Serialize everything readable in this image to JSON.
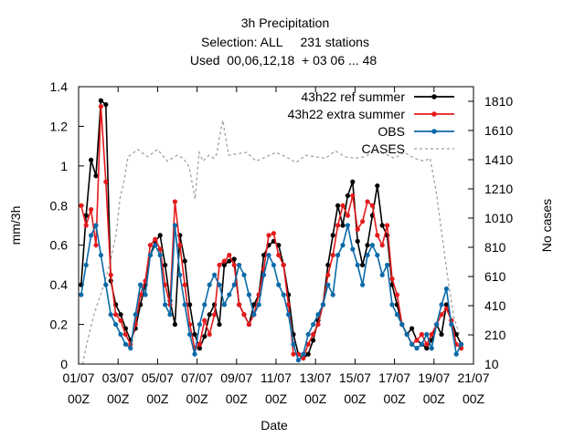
{
  "chart_data": {
    "type": "line",
    "title": [
      "3h Precipitation",
      "Selection: ALL     231 stations",
      "Used  00,06,12,18  + 03 06 ... 48"
    ],
    "xlabel": "Date",
    "ylabel": "mm/3h",
    "y2label": "No cases",
    "x_unit": "days since 01/07 00Z",
    "xlim": [
      0,
      20
    ],
    "ylim": [
      0,
      1.4
    ],
    "y2lim": [
      10,
      1910
    ],
    "x_ticks": [
      {
        "v": 0,
        "l1": "01/07",
        "l2": "00Z"
      },
      {
        "v": 2,
        "l1": "03/07",
        "l2": "00Z"
      },
      {
        "v": 4,
        "l1": "05/07",
        "l2": "00Z"
      },
      {
        "v": 6,
        "l1": "07/07",
        "l2": "00Z"
      },
      {
        "v": 8,
        "l1": "09/07",
        "l2": "00Z"
      },
      {
        "v": 10,
        "l1": "11/07",
        "l2": "00Z"
      },
      {
        "v": 12,
        "l1": "13/07",
        "l2": "00Z"
      },
      {
        "v": 14,
        "l1": "15/07",
        "l2": "00Z"
      },
      {
        "v": 16,
        "l1": "17/07",
        "l2": "00Z"
      },
      {
        "v": 18,
        "l1": "19/07",
        "l2": "00Z"
      },
      {
        "v": 20,
        "l1": "21/07",
        "l2": "00Z"
      }
    ],
    "y_ticks": [
      "0",
      "0.2",
      "0.4",
      "0.6",
      "0.8",
      "1",
      "1.2",
      "1.4"
    ],
    "y2_ticks": [
      "10",
      "210",
      "410",
      "610",
      "810",
      "1010",
      "1210",
      "1410",
      "1610",
      "1810"
    ],
    "legend_position": "top-right",
    "series": [
      {
        "name": "43h22 ref summer",
        "color": "#000000",
        "x": [
          0.13,
          0.38,
          0.63,
          0.88,
          1.13,
          1.38,
          1.63,
          1.88,
          2.13,
          2.38,
          2.63,
          2.88,
          3.13,
          3.38,
          3.63,
          3.88,
          4.13,
          4.38,
          4.63,
          4.88,
          5.13,
          5.38,
          5.63,
          5.88,
          6.13,
          6.38,
          6.63,
          6.88,
          7.13,
          7.38,
          7.63,
          7.88,
          8.13,
          8.38,
          8.63,
          8.88,
          9.13,
          9.38,
          9.63,
          9.88,
          10.13,
          10.38,
          10.63,
          10.88,
          11.13,
          11.38,
          11.63,
          11.88,
          12.13,
          12.38,
          12.63,
          12.88,
          13.13,
          13.38,
          13.63,
          13.88,
          14.13,
          14.38,
          14.63,
          14.88,
          15.13,
          15.38,
          15.63,
          15.88,
          16.13,
          16.38,
          16.63,
          16.88,
          17.13,
          17.38,
          17.63,
          17.88,
          18.13,
          18.38,
          18.63,
          18.88,
          19.13,
          19.38
        ],
        "values": [
          0.4,
          0.75,
          1.03,
          0.95,
          1.33,
          1.31,
          0.42,
          0.3,
          0.25,
          0.18,
          0.12,
          0.18,
          0.3,
          0.4,
          0.55,
          0.62,
          0.65,
          0.5,
          0.32,
          0.2,
          0.65,
          0.52,
          0.3,
          0.15,
          0.08,
          0.14,
          0.25,
          0.3,
          0.2,
          0.5,
          0.52,
          0.53,
          0.3,
          0.25,
          0.2,
          0.3,
          0.35,
          0.55,
          0.6,
          0.62,
          0.6,
          0.5,
          0.35,
          0.15,
          0.05,
          0.03,
          0.05,
          0.12,
          0.22,
          0.3,
          0.5,
          0.65,
          0.8,
          0.7,
          0.85,
          0.92,
          0.62,
          0.5,
          0.6,
          0.75,
          0.9,
          0.7,
          0.65,
          0.4,
          0.3,
          0.2,
          0.15,
          0.18,
          0.12,
          0.1,
          0.08,
          0.12,
          0.2,
          0.15,
          0.3,
          0.22,
          0.15,
          0.1
        ]
      },
      {
        "name": "43h22 extra summer",
        "color": "#e41a1c",
        "x": [
          0.13,
          0.38,
          0.63,
          0.88,
          1.13,
          1.38,
          1.63,
          1.88,
          2.13,
          2.38,
          2.63,
          2.88,
          3.13,
          3.38,
          3.63,
          3.88,
          4.13,
          4.38,
          4.63,
          4.88,
          5.13,
          5.38,
          5.63,
          5.88,
          6.13,
          6.38,
          6.63,
          6.88,
          7.13,
          7.38,
          7.63,
          7.88,
          8.13,
          8.38,
          8.63,
          8.88,
          9.13,
          9.38,
          9.63,
          9.88,
          10.13,
          10.38,
          10.63,
          10.88,
          11.13,
          11.38,
          11.63,
          11.88,
          12.13,
          12.38,
          12.63,
          12.88,
          13.13,
          13.38,
          13.63,
          13.88,
          14.13,
          14.38,
          14.63,
          14.88,
          15.13,
          15.38,
          15.63,
          15.88,
          16.13,
          16.38,
          16.63,
          16.88,
          17.13,
          17.38,
          17.63,
          17.88,
          18.13,
          18.38,
          18.63,
          18.88,
          19.13,
          19.38
        ],
        "values": [
          0.8,
          0.7,
          0.78,
          0.6,
          1.3,
          0.92,
          0.45,
          0.25,
          0.22,
          0.15,
          0.1,
          0.2,
          0.35,
          0.42,
          0.6,
          0.63,
          0.58,
          0.4,
          0.3,
          0.82,
          0.6,
          0.4,
          0.2,
          0.08,
          0.1,
          0.22,
          0.15,
          0.25,
          0.5,
          0.52,
          0.55,
          0.5,
          0.3,
          0.25,
          0.2,
          0.25,
          0.35,
          0.48,
          0.65,
          0.66,
          0.55,
          0.5,
          0.3,
          0.05,
          0.05,
          0.03,
          0.1,
          0.15,
          0.2,
          0.3,
          0.45,
          0.55,
          0.7,
          0.8,
          0.75,
          0.85,
          0.68,
          0.72,
          0.82,
          0.8,
          0.65,
          0.6,
          0.7,
          0.43,
          0.35,
          0.2,
          0.15,
          0.1,
          0.12,
          0.15,
          0.1,
          0.15,
          0.2,
          0.25,
          0.28,
          0.22,
          0.1,
          0.08
        ]
      },
      {
        "name": "OBS",
        "color": "#0a6aa8",
        "x": [
          0.13,
          0.38,
          0.63,
          0.88,
          1.13,
          1.38,
          1.63,
          1.88,
          2.13,
          2.38,
          2.63,
          2.88,
          3.13,
          3.38,
          3.63,
          3.88,
          4.13,
          4.38,
          4.63,
          4.88,
          5.13,
          5.38,
          5.63,
          5.88,
          6.13,
          6.38,
          6.63,
          6.88,
          7.13,
          7.38,
          7.63,
          7.88,
          8.13,
          8.38,
          8.63,
          8.88,
          9.13,
          9.38,
          9.63,
          9.88,
          10.13,
          10.38,
          10.63,
          10.88,
          11.13,
          11.38,
          11.63,
          11.88,
          12.13,
          12.38,
          12.63,
          12.88,
          13.13,
          13.38,
          13.63,
          13.88,
          14.13,
          14.38,
          14.63,
          14.88,
          15.13,
          15.38,
          15.63,
          15.88,
          16.13,
          16.38,
          16.63,
          16.88,
          17.13,
          17.38,
          17.63,
          17.88,
          18.13,
          18.38,
          18.63,
          18.88,
          19.13,
          19.38
        ],
        "values": [
          0.35,
          0.5,
          0.65,
          0.7,
          0.55,
          0.4,
          0.25,
          0.2,
          0.15,
          0.1,
          0.08,
          0.25,
          0.4,
          0.35,
          0.55,
          0.6,
          0.55,
          0.3,
          0.25,
          0.7,
          0.45,
          0.3,
          0.15,
          0.05,
          0.2,
          0.3,
          0.4,
          0.45,
          0.4,
          0.3,
          0.35,
          0.4,
          0.5,
          0.45,
          0.35,
          0.25,
          0.3,
          0.45,
          0.55,
          0.5,
          0.4,
          0.35,
          0.25,
          0.1,
          0.02,
          0.05,
          0.15,
          0.2,
          0.25,
          0.3,
          0.4,
          0.35,
          0.55,
          0.6,
          0.7,
          0.58,
          0.5,
          0.4,
          0.55,
          0.6,
          0.55,
          0.45,
          0.5,
          0.3,
          0.25,
          0.2,
          0.15,
          0.1,
          0.08,
          0.1,
          0.15,
          0.08,
          0.2,
          0.3,
          0.38,
          0.2,
          0.05,
          0.1
        ]
      },
      {
        "name": "CASES",
        "color": "#a0a0a0",
        "axis": "y2",
        "dashed": true,
        "x": [
          0.2,
          0.5,
          0.8,
          1.0,
          1.3,
          1.6,
          1.9,
          2.1,
          2.3,
          2.5,
          3.0,
          3.5,
          4.0,
          4.5,
          5.0,
          5.3,
          5.6,
          5.9,
          6.1,
          6.3,
          6.6,
          6.85,
          7.0,
          7.1,
          7.3,
          7.6,
          8.0,
          8.5,
          9.0,
          9.5,
          10.0,
          10.5,
          11.0,
          11.5,
          12.0,
          12.5,
          13.0,
          13.5,
          14.0,
          14.5,
          15.0,
          15.5,
          16.0,
          16.5,
          17.0,
          17.5,
          17.8,
          18.1,
          18.4,
          18.7,
          19.0,
          19.3
        ],
        "values": [
          10,
          200,
          360,
          440,
          560,
          710,
          900,
          1150,
          1260,
          1430,
          1480,
          1430,
          1480,
          1400,
          1440,
          1420,
          1360,
          1140,
          1460,
          1400,
          1440,
          1420,
          1450,
          1540,
          1680,
          1440,
          1450,
          1460,
          1400,
          1430,
          1460,
          1430,
          1390,
          1440,
          1430,
          1420,
          1470,
          1430,
          1420,
          1430,
          1470,
          1450,
          1420,
          1460,
          1420,
          1400,
          1420,
          1200,
          900,
          600,
          330,
          210
        ]
      }
    ]
  }
}
